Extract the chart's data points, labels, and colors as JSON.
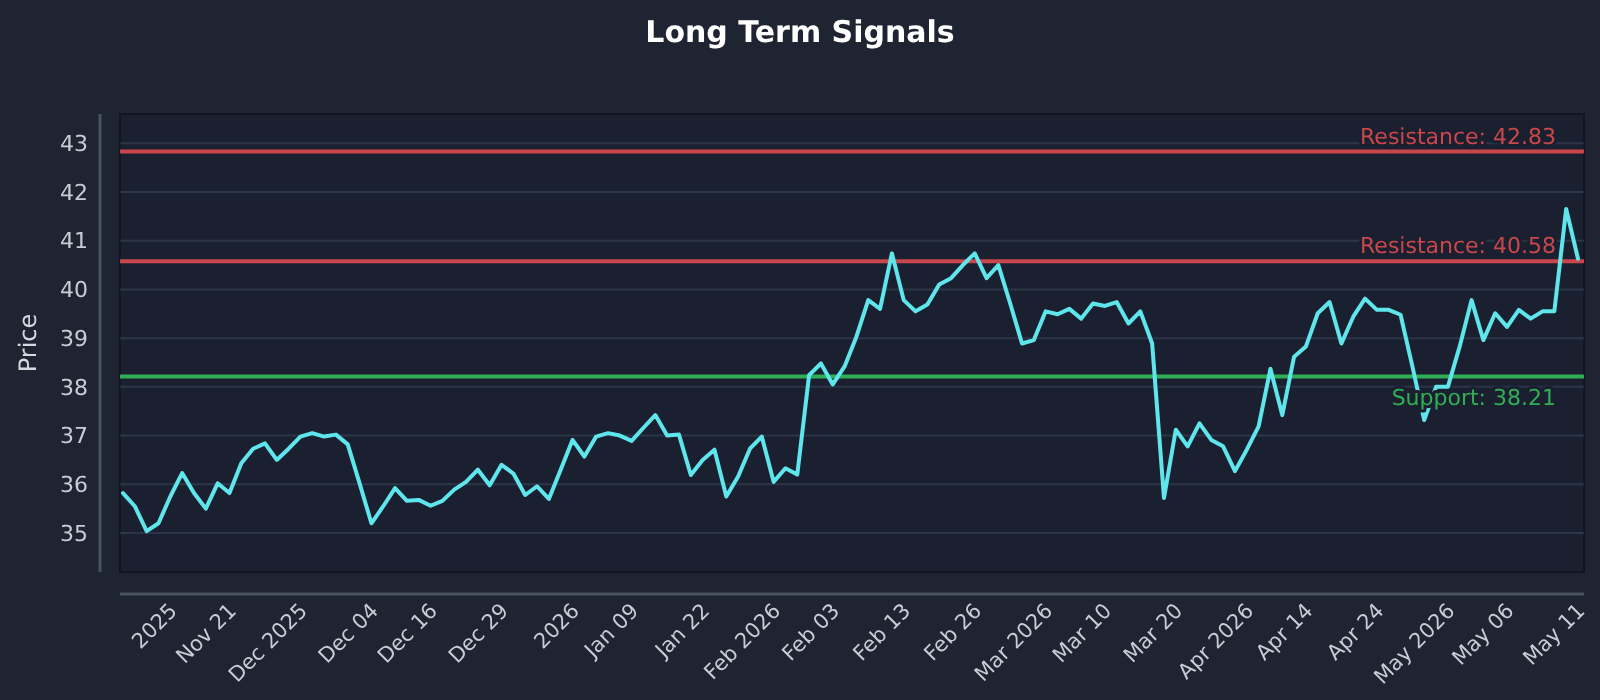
{
  "chart_data": {
    "type": "line",
    "title": "Long Term Signals",
    "ylabel": "Price",
    "categories": [
      null,
      null,
      null,
      null,
      "2025",
      null,
      null,
      null,
      null,
      "Nov 21",
      null,
      null,
      null,
      null,
      null,
      "Dec 2025",
      null,
      null,
      null,
      null,
      null,
      "Dec 04",
      null,
      null,
      null,
      null,
      "Dec 16",
      null,
      null,
      null,
      null,
      null,
      "Dec 29",
      null,
      null,
      null,
      null,
      null,
      "2026",
      null,
      null,
      null,
      null,
      "Jan 09",
      null,
      null,
      null,
      null,
      null,
      "Jan 22",
      null,
      null,
      null,
      null,
      null,
      "Feb 2026",
      null,
      null,
      null,
      null,
      "Feb 03",
      null,
      null,
      null,
      null,
      null,
      "Feb 13",
      null,
      null,
      null,
      null,
      null,
      "Feb 26",
      null,
      null,
      null,
      null,
      null,
      "Mar 2026",
      null,
      null,
      null,
      null,
      "Mar 10",
      null,
      null,
      null,
      null,
      null,
      "Mar 20",
      null,
      null,
      null,
      null,
      null,
      "Apr 2026",
      null,
      null,
      null,
      null,
      "Apr 14",
      null,
      null,
      null,
      null,
      null,
      "Apr 24",
      null,
      null,
      null,
      null,
      null,
      "May 2026",
      null,
      null,
      null,
      null,
      "May 06",
      null,
      null,
      null,
      null,
      null,
      "May 11"
    ],
    "series": [
      {
        "color": "#5ee6ec",
        "values": [
          35.82,
          35.55,
          35.04,
          35.2,
          35.75,
          36.23,
          35.82,
          35.5,
          36.02,
          35.82,
          36.43,
          36.73,
          36.84,
          36.5,
          36.73,
          36.98,
          37.05,
          36.98,
          37.02,
          36.82,
          36.02,
          35.2,
          35.55,
          35.92,
          35.66,
          35.68,
          35.56,
          35.66,
          35.89,
          36.05,
          36.3,
          35.98,
          36.4,
          36.22,
          35.78,
          35.96,
          35.7,
          36.3,
          36.91,
          36.57,
          36.98,
          37.05,
          37.0,
          36.89,
          37.16,
          37.42,
          37.0,
          37.02,
          36.19,
          36.5,
          36.71,
          35.75,
          36.16,
          36.73,
          36.98,
          36.05,
          36.33,
          36.2,
          38.24,
          38.48,
          38.05,
          38.42,
          39.03,
          39.78,
          39.6,
          40.74,
          39.78,
          39.55,
          39.69,
          40.1,
          40.23,
          40.5,
          40.74,
          40.23,
          40.5,
          39.71,
          38.89,
          38.96,
          39.55,
          39.49,
          39.6,
          39.4,
          39.71,
          39.66,
          39.74,
          39.3,
          39.55,
          38.89,
          35.72,
          37.12,
          36.78,
          37.25,
          36.91,
          36.78,
          36.27,
          36.71,
          37.19,
          38.37,
          37.42,
          38.62,
          38.83,
          39.51,
          39.74,
          38.89,
          39.44,
          39.81,
          39.58,
          39.58,
          39.48,
          38.42,
          37.32,
          38.0,
          38.0,
          38.83,
          39.78,
          38.96,
          39.51,
          39.23,
          39.58,
          39.4,
          39.55,
          39.55,
          41.65,
          40.63
        ]
      }
    ],
    "ylim": [
      34.2,
      43.6
    ],
    "yticks": [
      35,
      36,
      37,
      38,
      39,
      40,
      41,
      42,
      43
    ],
    "grid": "y",
    "line_style": "solid",
    "marker": "none",
    "ref_lines": [
      {
        "axis": "y",
        "value": 42.83,
        "label": "Resistance: 42.83",
        "color": "#c9474a"
      },
      {
        "axis": "y",
        "value": 40.58,
        "label": "Resistance: 40.58",
        "color": "#c9474a"
      },
      {
        "axis": "y",
        "value": 38.21,
        "label": "Support: 38.21",
        "color": "#2fae55"
      }
    ]
  }
}
